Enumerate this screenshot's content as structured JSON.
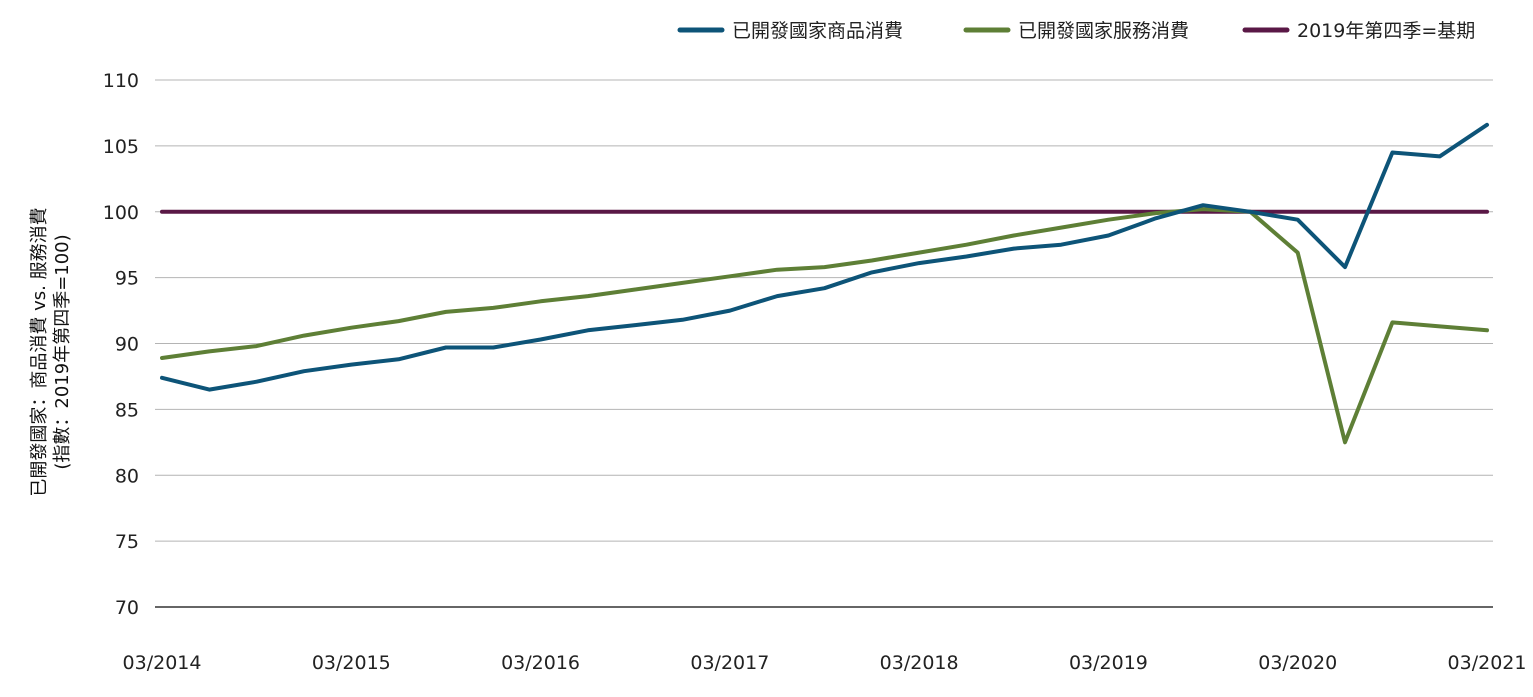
{
  "chart_data": {
    "type": "line",
    "ylabel_line1": "已開發國家：商品消費 vs. 服務消費",
    "ylabel_line2": "(指數：2019年第四季=100)",
    "ylim": [
      70,
      110
    ],
    "yticks": [
      70,
      75,
      80,
      85,
      90,
      95,
      100,
      105,
      110
    ],
    "x_ticks": [
      "03/2014",
      "03/2015",
      "03/2016",
      "03/2017",
      "03/2018",
      "03/2019",
      "03/2020",
      "03/2021"
    ],
    "x": [
      "Q1 2014",
      "Q2 2014",
      "Q3 2014",
      "Q4 2014",
      "Q1 2015",
      "Q2 2015",
      "Q3 2015",
      "Q4 2015",
      "Q1 2016",
      "Q2 2016",
      "Q3 2016",
      "Q4 2016",
      "Q1 2017",
      "Q2 2017",
      "Q3 2017",
      "Q4 2017",
      "Q1 2018",
      "Q2 2018",
      "Q3 2018",
      "Q4 2018",
      "Q1 2019",
      "Q2 2019",
      "Q3 2019",
      "Q4 2019",
      "Q1 2020",
      "Q2 2020",
      "Q3 2020",
      "Q4 2020",
      "Q1 2021"
    ],
    "grid": true,
    "legend_position": "top-right",
    "series": [
      {
        "name": "已開發國家商品消費",
        "color": "#0d5478",
        "values": [
          87.4,
          86.5,
          87.1,
          87.9,
          88.4,
          88.8,
          89.7,
          89.7,
          90.3,
          91.0,
          91.4,
          91.8,
          92.5,
          93.6,
          94.2,
          95.4,
          96.1,
          96.6,
          97.2,
          97.5,
          98.2,
          99.5,
          100.5,
          100.0,
          99.4,
          95.8,
          104.5,
          104.2,
          106.6
        ]
      },
      {
        "name": "已開發國家服務消費",
        "color": "#5e7f36",
        "values": [
          88.9,
          89.4,
          89.8,
          90.6,
          91.2,
          91.7,
          92.4,
          92.7,
          93.2,
          93.6,
          94.1,
          94.6,
          95.1,
          95.6,
          95.8,
          96.3,
          96.9,
          97.5,
          98.2,
          98.8,
          99.4,
          99.9,
          100.2,
          100.0,
          96.9,
          82.5,
          91.6,
          91.3,
          91.0
        ]
      },
      {
        "name": "2019年第四季=基期",
        "color": "#5a1846",
        "values": [
          100,
          100,
          100,
          100,
          100,
          100,
          100,
          100,
          100,
          100,
          100,
          100,
          100,
          100,
          100,
          100,
          100,
          100,
          100,
          100,
          100,
          100,
          100,
          100,
          100,
          100,
          100,
          100,
          100
        ]
      }
    ]
  }
}
